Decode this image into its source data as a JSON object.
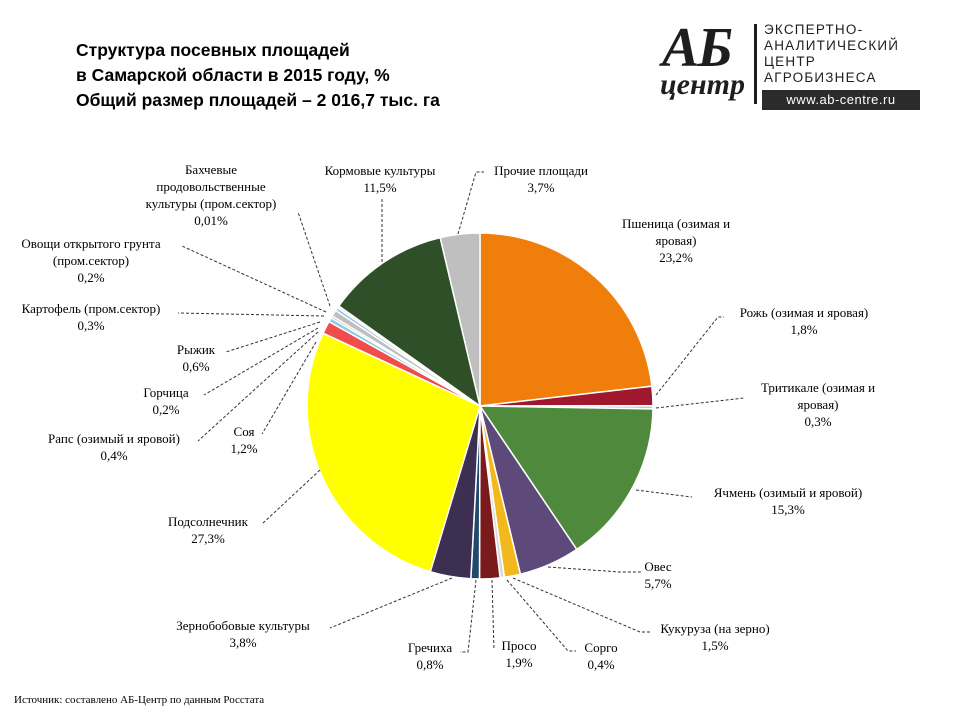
{
  "title": {
    "line1": "Структура  посевных площадей",
    "line2": "в Самарской области  в 2015 году, %",
    "line3": "Общий размер  площадей – 2 016,7 тыс. га"
  },
  "logo": {
    "mark_top": "АБ",
    "mark_bottom": "центр",
    "line1": "ЭКСПЕРТНО-",
    "line2": "АНАЛИТИЧЕСКИЙ",
    "line3": "ЦЕНТР",
    "line4": "АГРОБИЗНЕСА",
    "site": "www.ab-centre.ru"
  },
  "source": "Источник:  составлено АБ-Центр  по данным Росстата",
  "chart_data": {
    "type": "pie",
    "title": "Структура  посевных площадей в Самарской области  в 2015 году, %",
    "slices": [
      {
        "label": "Пшеница (озимая и яровая)",
        "value": 23.2,
        "value_label": "23,2%",
        "color": "#ef7f0a"
      },
      {
        "label": "Рожь (озимая и яровая)",
        "value": 1.8,
        "value_label": "1,8%",
        "color": "#a0182e"
      },
      {
        "label": "Тритикале (озимая и яровая)",
        "value": 0.3,
        "value_label": "0,3%",
        "color": "#b7cddf"
      },
      {
        "label": "Ячмень (озимый и яровой)",
        "value": 15.3,
        "value_label": "15,3%",
        "color": "#4f8a3c"
      },
      {
        "label": "Овес",
        "value": 5.7,
        "value_label": "5,7%",
        "color": "#5e4a7a"
      },
      {
        "label": "Кукуруза  (на зерно)",
        "value": 1.5,
        "value_label": "1,5%",
        "color": "#f2b81c"
      },
      {
        "label": "Сорго",
        "value": 0.4,
        "value_label": "0,4%",
        "color": "#d9d9d9"
      },
      {
        "label": "Просо",
        "value": 1.9,
        "value_label": "1,9%",
        "color": "#7a1a1a"
      },
      {
        "label": "Гречиха",
        "value": 0.8,
        "value_label": "0,8%",
        "color": "#1f4a6e"
      },
      {
        "label": "Зернобобовые культуры",
        "value": 3.8,
        "value_label": "3,8%",
        "color": "#3d2f52"
      },
      {
        "label": "Подсолнечник",
        "value": 27.3,
        "value_label": "27,3%",
        "color": "#ffff00"
      },
      {
        "label": "Соя",
        "value": 1.2,
        "value_label": "1,2%",
        "color": "#f04c4c"
      },
      {
        "label": "Рапс (озимый и яровой)",
        "value": 0.4,
        "value_label": "0,4%",
        "color": "#8ccbe0"
      },
      {
        "label": "Горчица",
        "value": 0.2,
        "value_label": "0,2%",
        "color": "#c9b38c"
      },
      {
        "label": "Рыжик",
        "value": 0.6,
        "value_label": "0,6%",
        "color": "#bfbfbf"
      },
      {
        "label": "Картофель (пром.сектор)",
        "value": 0.3,
        "value_label": "0,3%",
        "color": "#9bbfe0"
      },
      {
        "label": "Овощи открытого грунта (пром.сектор)",
        "value": 0.2,
        "value_label": "0,2%",
        "color": "#e0e0e0"
      },
      {
        "label": "Бахчевые продовольственные культуры  (пром.сектор)",
        "value": 0.01,
        "value_label": "0,01%",
        "color": "#e8e8e8"
      },
      {
        "label": "Кормовые культуры",
        "value": 11.5,
        "value_label": "11,5%",
        "color": "#2f4f28"
      },
      {
        "label": "Прочие площади",
        "value": 3.7,
        "value_label": "3,7%",
        "color": "#bfbfbf"
      }
    ]
  }
}
